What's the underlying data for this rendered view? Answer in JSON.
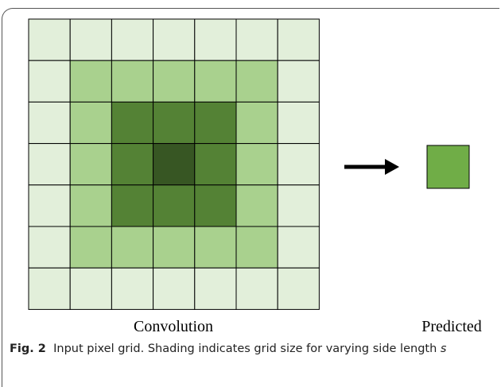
{
  "figure": {
    "labels": {
      "left": "Convolution",
      "right": "Predicted"
    },
    "caption": {
      "number": "Fig. 2",
      "text": "Input pixel grid. Shading indicates grid size for varying side length ",
      "variable": "s"
    }
  }
}
